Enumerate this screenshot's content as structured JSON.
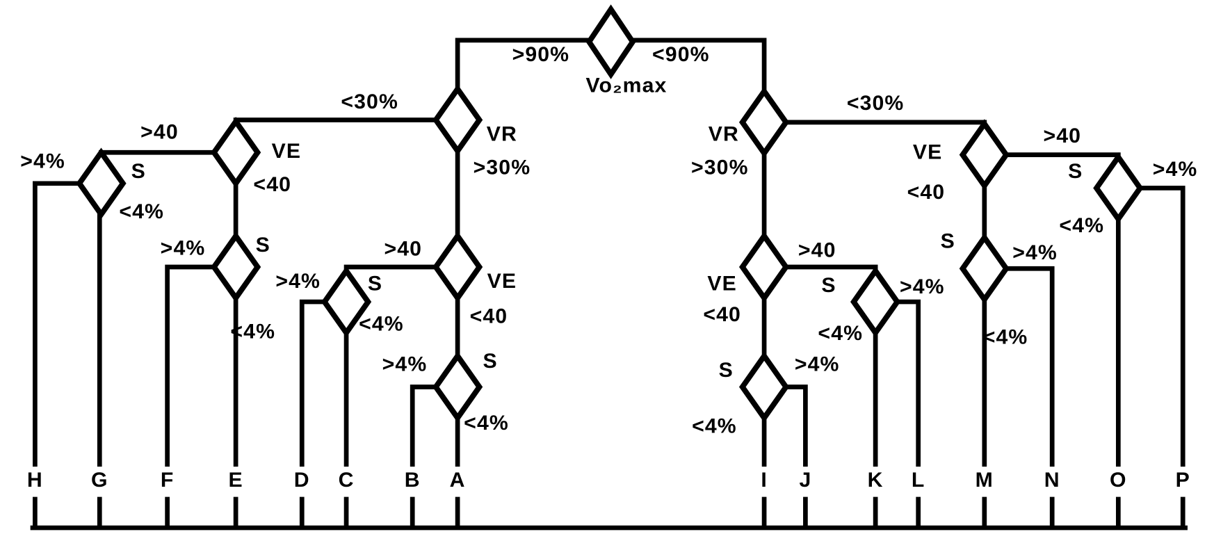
{
  "root": {
    "label": "Vo₂max",
    "branches": [
      ">90%",
      "<90%"
    ]
  },
  "nodes": [
    {
      "label": "VR",
      "branches": [
        "<30%",
        ">30%"
      ]
    },
    {
      "label": "VE",
      "branches": [
        ">40",
        "<40"
      ]
    },
    {
      "label": "S",
      "branches": [
        ">4%",
        "<4%"
      ]
    },
    {
      "label": "S",
      "branches": [
        ">4%",
        "<4%"
      ]
    },
    {
      "label": "VE",
      "branches": [
        ">40",
        "<40"
      ]
    },
    {
      "label": "S",
      "branches": [
        ">4%",
        "<4%"
      ]
    },
    {
      "label": "S",
      "branches": [
        ">4%",
        "<4%"
      ]
    },
    {
      "label": "VR",
      "branches": [
        "<30%",
        ">30%"
      ]
    },
    {
      "label": "VE",
      "branches": [
        ">40",
        "<40"
      ]
    },
    {
      "label": "S",
      "branches": [
        ">4%",
        "<4%"
      ]
    },
    {
      "label": "S",
      "branches": [
        ">4%",
        "<4%"
      ]
    },
    {
      "label": "VE",
      "branches": [
        ">40",
        "<40"
      ]
    },
    {
      "label": "S",
      "branches": [
        ">4%",
        "<4%"
      ]
    },
    {
      "label": "S",
      "branches": [
        ">4%",
        "<4%"
      ]
    }
  ],
  "leaves": [
    "H",
    "G",
    "F",
    "E",
    "D",
    "C",
    "B",
    "A",
    "I",
    "J",
    "K",
    "L",
    "M",
    "N",
    "O",
    "P"
  ]
}
